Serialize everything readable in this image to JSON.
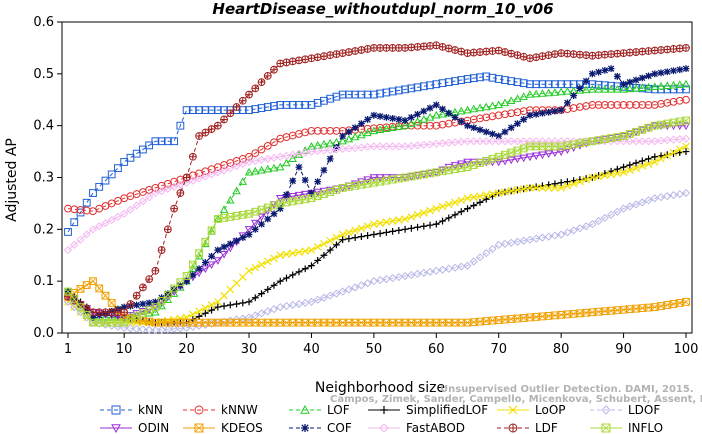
{
  "chart_data": {
    "type": "line",
    "title": "HeartDisease_withoutdupl_norm_10_v06",
    "xlabel": "Neighborhood size",
    "ylabel": "Adjusted AP",
    "xlim": [
      1,
      100
    ],
    "ylim": [
      0,
      0.6
    ],
    "xticks": [
      1,
      10,
      20,
      30,
      40,
      50,
      60,
      70,
      80,
      90,
      100
    ],
    "yticks": [
      0.0,
      0.1,
      0.2,
      0.3,
      0.4,
      0.5,
      0.6
    ],
    "grid": false,
    "legend_position": "bottom",
    "credit": "Campos, Zimek, Sander, Campello, Micenkova, Schubert, Assent, Houle",
    "credit2": "Unsupervised Outlier Detection. DAMI, 2015.",
    "series": [
      {
        "name": "kNN",
        "color": "#1f5fd6",
        "marker": "square",
        "dash": "4,3",
        "points": [
          [
            1,
            0.195
          ],
          [
            5,
            0.27
          ],
          [
            10,
            0.33
          ],
          [
            15,
            0.37
          ],
          [
            18,
            0.37
          ],
          [
            20,
            0.43
          ],
          [
            25,
            0.43
          ],
          [
            30,
            0.43
          ],
          [
            35,
            0.44
          ],
          [
            40,
            0.44
          ],
          [
            45,
            0.46
          ],
          [
            50,
            0.46
          ],
          [
            55,
            0.47
          ],
          [
            60,
            0.48
          ],
          [
            65,
            0.49
          ],
          [
            68,
            0.495
          ],
          [
            70,
            0.49
          ],
          [
            75,
            0.48
          ],
          [
            80,
            0.48
          ],
          [
            85,
            0.48
          ],
          [
            90,
            0.475
          ],
          [
            95,
            0.47
          ],
          [
            100,
            0.47
          ]
        ]
      },
      {
        "name": "kNNW",
        "color": "#e03030",
        "marker": "circle",
        "dash": "4,3",
        "points": [
          [
            1,
            0.24
          ],
          [
            5,
            0.235
          ],
          [
            10,
            0.26
          ],
          [
            15,
            0.28
          ],
          [
            20,
            0.3
          ],
          [
            25,
            0.32
          ],
          [
            30,
            0.34
          ],
          [
            35,
            0.375
          ],
          [
            40,
            0.39
          ],
          [
            45,
            0.39
          ],
          [
            50,
            0.395
          ],
          [
            55,
            0.4
          ],
          [
            60,
            0.4
          ],
          [
            65,
            0.41
          ],
          [
            70,
            0.42
          ],
          [
            75,
            0.43
          ],
          [
            80,
            0.43
          ],
          [
            85,
            0.44
          ],
          [
            90,
            0.44
          ],
          [
            95,
            0.44
          ],
          [
            100,
            0.45
          ]
        ]
      },
      {
        "name": "LOF",
        "color": "#22cc22",
        "marker": "triangle",
        "dash": "4,3",
        "points": [
          [
            1,
            0.08
          ],
          [
            5,
            0.03
          ],
          [
            10,
            0.03
          ],
          [
            15,
            0.04
          ],
          [
            20,
            0.1
          ],
          [
            25,
            0.22
          ],
          [
            30,
            0.31
          ],
          [
            35,
            0.32
          ],
          [
            40,
            0.36
          ],
          [
            45,
            0.37
          ],
          [
            50,
            0.39
          ],
          [
            55,
            0.4
          ],
          [
            60,
            0.42
          ],
          [
            65,
            0.43
          ],
          [
            70,
            0.44
          ],
          [
            75,
            0.46
          ],
          [
            80,
            0.465
          ],
          [
            85,
            0.47
          ],
          [
            90,
            0.47
          ],
          [
            95,
            0.475
          ],
          [
            100,
            0.48
          ]
        ]
      },
      {
        "name": "SimplifiedLOF",
        "color": "#000000",
        "marker": "plus",
        "dash": "",
        "points": [
          [
            1,
            0.08
          ],
          [
            5,
            0.04
          ],
          [
            10,
            0.03
          ],
          [
            15,
            0.02
          ],
          [
            20,
            0.02
          ],
          [
            25,
            0.05
          ],
          [
            30,
            0.06
          ],
          [
            35,
            0.1
          ],
          [
            40,
            0.13
          ],
          [
            45,
            0.18
          ],
          [
            50,
            0.19
          ],
          [
            55,
            0.2
          ],
          [
            60,
            0.21
          ],
          [
            65,
            0.24
          ],
          [
            70,
            0.27
          ],
          [
            75,
            0.28
          ],
          [
            80,
            0.29
          ],
          [
            85,
            0.3
          ],
          [
            90,
            0.32
          ],
          [
            95,
            0.34
          ],
          [
            100,
            0.35
          ]
        ]
      },
      {
        "name": "LoOP",
        "color": "#f2e000",
        "marker": "x",
        "dash": "",
        "points": [
          [
            1,
            0.06
          ],
          [
            5,
            0.02
          ],
          [
            10,
            0.02
          ],
          [
            15,
            0.02
          ],
          [
            20,
            0.03
          ],
          [
            25,
            0.06
          ],
          [
            30,
            0.12
          ],
          [
            35,
            0.15
          ],
          [
            40,
            0.16
          ],
          [
            45,
            0.19
          ],
          [
            50,
            0.21
          ],
          [
            55,
            0.22
          ],
          [
            60,
            0.24
          ],
          [
            65,
            0.26
          ],
          [
            70,
            0.27
          ],
          [
            75,
            0.28
          ],
          [
            80,
            0.28
          ],
          [
            85,
            0.3
          ],
          [
            90,
            0.31
          ],
          [
            95,
            0.33
          ],
          [
            100,
            0.36
          ]
        ]
      },
      {
        "name": "LDOF",
        "color": "#b8b8e8",
        "marker": "diamond",
        "dash": "4,3",
        "points": [
          [
            1,
            0.06
          ],
          [
            5,
            0.02
          ],
          [
            10,
            0.01
          ],
          [
            15,
            0.005
          ],
          [
            20,
            0.01
          ],
          [
            25,
            0.02
          ],
          [
            30,
            0.03
          ],
          [
            35,
            0.05
          ],
          [
            40,
            0.06
          ],
          [
            45,
            0.08
          ],
          [
            50,
            0.1
          ],
          [
            55,
            0.11
          ],
          [
            60,
            0.12
          ],
          [
            65,
            0.13
          ],
          [
            70,
            0.17
          ],
          [
            75,
            0.18
          ],
          [
            80,
            0.19
          ],
          [
            85,
            0.21
          ],
          [
            90,
            0.24
          ],
          [
            95,
            0.26
          ],
          [
            100,
            0.27
          ]
        ]
      },
      {
        "name": "ODIN",
        "color": "#9b30d8",
        "marker": "triangle-down",
        "dash": "",
        "points": [
          [
            1,
            0.07
          ],
          [
            5,
            0.04
          ],
          [
            10,
            0.03
          ],
          [
            15,
            0.05
          ],
          [
            20,
            0.1
          ],
          [
            25,
            0.14
          ],
          [
            30,
            0.2
          ],
          [
            35,
            0.26
          ],
          [
            40,
            0.27
          ],
          [
            45,
            0.28
          ],
          [
            50,
            0.3
          ],
          [
            55,
            0.3
          ],
          [
            60,
            0.31
          ],
          [
            62,
            0.32
          ],
          [
            65,
            0.33
          ],
          [
            70,
            0.33
          ],
          [
            75,
            0.34
          ],
          [
            80,
            0.35
          ],
          [
            85,
            0.37
          ],
          [
            90,
            0.38
          ],
          [
            95,
            0.4
          ],
          [
            100,
            0.4
          ]
        ]
      },
      {
        "name": "KDEOS",
        "color": "#f0a000",
        "marker": "square-x",
        "dash": "",
        "points": [
          [
            1,
            0.07
          ],
          [
            5,
            0.1
          ],
          [
            10,
            0.03
          ],
          [
            15,
            0.02
          ],
          [
            20,
            0.02
          ],
          [
            25,
            0.02
          ],
          [
            30,
            0.02
          ],
          [
            35,
            0.02
          ],
          [
            40,
            0.02
          ],
          [
            45,
            0.02
          ],
          [
            50,
            0.02
          ],
          [
            55,
            0.02
          ],
          [
            60,
            0.02
          ],
          [
            65,
            0.02
          ],
          [
            70,
            0.025
          ],
          [
            75,
            0.03
          ],
          [
            80,
            0.035
          ],
          [
            85,
            0.04
          ],
          [
            90,
            0.045
          ],
          [
            95,
            0.05
          ],
          [
            100,
            0.06
          ]
        ]
      },
      {
        "name": "COF",
        "color": "#0a1a70",
        "marker": "star",
        "dash": "4,3",
        "points": [
          [
            1,
            0.08
          ],
          [
            5,
            0.03
          ],
          [
            10,
            0.05
          ],
          [
            15,
            0.06
          ],
          [
            20,
            0.1
          ],
          [
            25,
            0.16
          ],
          [
            30,
            0.19
          ],
          [
            35,
            0.24
          ],
          [
            38,
            0.32
          ],
          [
            40,
            0.27
          ],
          [
            45,
            0.38
          ],
          [
            50,
            0.42
          ],
          [
            55,
            0.41
          ],
          [
            60,
            0.44
          ],
          [
            65,
            0.4
          ],
          [
            70,
            0.38
          ],
          [
            75,
            0.42
          ],
          [
            80,
            0.43
          ],
          [
            85,
            0.5
          ],
          [
            88,
            0.51
          ],
          [
            90,
            0.48
          ],
          [
            95,
            0.5
          ],
          [
            100,
            0.51
          ]
        ]
      },
      {
        "name": "FastABOD",
        "color": "#f4b8f0",
        "marker": "diamond",
        "dash": "",
        "points": [
          [
            1,
            0.16
          ],
          [
            5,
            0.2
          ],
          [
            10,
            0.23
          ],
          [
            15,
            0.27
          ],
          [
            20,
            0.29
          ],
          [
            25,
            0.31
          ],
          [
            30,
            0.33
          ],
          [
            35,
            0.34
          ],
          [
            40,
            0.35
          ],
          [
            45,
            0.355
          ],
          [
            50,
            0.36
          ],
          [
            55,
            0.36
          ],
          [
            60,
            0.365
          ],
          [
            65,
            0.37
          ],
          [
            70,
            0.37
          ],
          [
            75,
            0.37
          ],
          [
            80,
            0.37
          ],
          [
            85,
            0.37
          ],
          [
            90,
            0.37
          ],
          [
            95,
            0.37
          ],
          [
            100,
            0.375
          ]
        ]
      },
      {
        "name": "LDF",
        "color": "#a02020",
        "marker": "circle-plus",
        "dash": "4,3",
        "points": [
          [
            1,
            0.07
          ],
          [
            5,
            0.04
          ],
          [
            10,
            0.04
          ],
          [
            15,
            0.12
          ],
          [
            18,
            0.24
          ],
          [
            20,
            0.3
          ],
          [
            22,
            0.38
          ],
          [
            25,
            0.4
          ],
          [
            30,
            0.46
          ],
          [
            35,
            0.52
          ],
          [
            40,
            0.53
          ],
          [
            45,
            0.54
          ],
          [
            50,
            0.55
          ],
          [
            55,
            0.55
          ],
          [
            60,
            0.555
          ],
          [
            65,
            0.54
          ],
          [
            70,
            0.545
          ],
          [
            75,
            0.53
          ],
          [
            80,
            0.54
          ],
          [
            85,
            0.535
          ],
          [
            90,
            0.54
          ],
          [
            95,
            0.545
          ],
          [
            100,
            0.55
          ]
        ]
      },
      {
        "name": "INFLO",
        "color": "#a8d838",
        "marker": "square-x",
        "dash": "",
        "points": [
          [
            1,
            0.08
          ],
          [
            5,
            0.02
          ],
          [
            10,
            0.02
          ],
          [
            15,
            0.05
          ],
          [
            20,
            0.11
          ],
          [
            25,
            0.22
          ],
          [
            30,
            0.23
          ],
          [
            35,
            0.25
          ],
          [
            40,
            0.26
          ],
          [
            45,
            0.28
          ],
          [
            50,
            0.29
          ],
          [
            55,
            0.3
          ],
          [
            60,
            0.31
          ],
          [
            65,
            0.32
          ],
          [
            70,
            0.34
          ],
          [
            75,
            0.36
          ],
          [
            80,
            0.36
          ],
          [
            85,
            0.37
          ],
          [
            90,
            0.38
          ],
          [
            95,
            0.4
          ],
          [
            100,
            0.41
          ]
        ]
      }
    ]
  }
}
